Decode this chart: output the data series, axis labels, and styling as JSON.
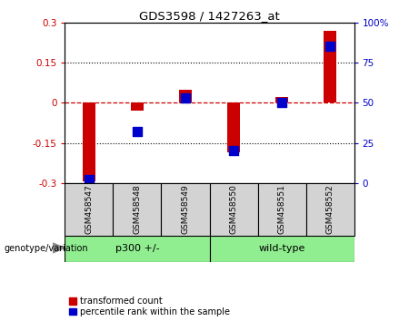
{
  "title": "GDS3598 / 1427263_at",
  "samples": [
    "GSM458547",
    "GSM458548",
    "GSM458549",
    "GSM458550",
    "GSM458551",
    "GSM458552"
  ],
  "red_values": [
    -0.295,
    -0.03,
    0.05,
    -0.185,
    0.02,
    0.27
  ],
  "blue_values_pct": [
    2,
    32,
    53,
    20,
    50,
    85
  ],
  "left_ylim": [
    -0.3,
    0.3
  ],
  "right_ylim": [
    0,
    100
  ],
  "left_yticks": [
    -0.3,
    -0.15,
    0.0,
    0.15,
    0.3
  ],
  "right_yticks": [
    0,
    25,
    50,
    75,
    100
  ],
  "left_yticklabels": [
    "-0.3",
    "-0.15",
    "0",
    "0.15",
    "0.3"
  ],
  "right_yticklabels": [
    "0",
    "25",
    "50",
    "75",
    "100%"
  ],
  "red_color": "#CC0000",
  "blue_color": "#0000CC",
  "dashed_line_color": "#CC0000",
  "bar_width": 0.25,
  "blue_marker_size": 48,
  "legend_red_label": "transformed count",
  "legend_blue_label": "percentile rank within the sample",
  "group_label": "genotype/variation",
  "tick_area_bg": "#d3d3d3",
  "green_color": "#90EE90",
  "group1_label": "p300 +/-",
  "group2_label": "wild-type",
  "group1_range": [
    0,
    2
  ],
  "group2_range": [
    3,
    5
  ]
}
